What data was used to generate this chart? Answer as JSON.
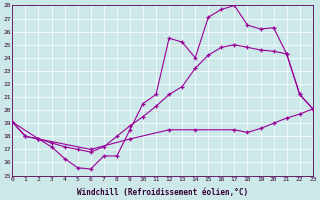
{
  "xlabel": "Windchill (Refroidissement éolien,°C)",
  "bg_color": "#cce8e8",
  "line_color": "#990099",
  "grid_color": "#ffffff",
  "xmin": 0,
  "xmax": 23,
  "ymin": 15,
  "ymax": 28,
  "xtick_labels": [
    "0",
    "1",
    "2",
    "3",
    "4",
    "5",
    "6",
    "7",
    "8",
    "9",
    "10",
    "11",
    "12",
    "13",
    "14",
    "15",
    "16",
    "17",
    "18",
    "19",
    "20",
    "21",
    "22",
    "23"
  ],
  "ytick_labels": [
    "15",
    "16",
    "17",
    "18",
    "19",
    "20",
    "21",
    "22",
    "23",
    "24",
    "25",
    "26",
    "27",
    "28"
  ],
  "series1": [
    [
      0,
      19.1
    ],
    [
      1,
      18.0
    ],
    [
      2,
      17.8
    ],
    [
      3,
      17.2
    ],
    [
      4,
      16.3
    ],
    [
      5,
      15.6
    ],
    [
      6,
      15.5
    ],
    [
      7,
      16.5
    ],
    [
      8,
      16.5
    ],
    [
      9,
      18.5
    ],
    [
      10,
      20.5
    ],
    [
      11,
      21.2
    ],
    [
      12,
      25.5
    ],
    [
      13,
      25.2
    ],
    [
      14,
      24.0
    ],
    [
      15,
      27.1
    ],
    [
      16,
      27.7
    ],
    [
      17,
      28.0
    ],
    [
      18,
      26.5
    ],
    [
      19,
      26.2
    ],
    [
      20,
      26.3
    ],
    [
      21,
      24.3
    ],
    [
      22,
      21.2
    ],
    [
      23,
      20.1
    ]
  ],
  "series2": [
    [
      0,
      19.1
    ],
    [
      1,
      18.0
    ],
    [
      2,
      17.8
    ],
    [
      3,
      17.5
    ],
    [
      4,
      17.2
    ],
    [
      5,
      17.0
    ],
    [
      6,
      16.8
    ],
    [
      7,
      17.2
    ],
    [
      8,
      18.0
    ],
    [
      9,
      18.8
    ],
    [
      10,
      19.5
    ],
    [
      11,
      20.3
    ],
    [
      12,
      21.2
    ],
    [
      13,
      21.8
    ],
    [
      14,
      23.2
    ],
    [
      15,
      24.2
    ],
    [
      16,
      24.8
    ],
    [
      17,
      25.0
    ],
    [
      18,
      24.8
    ],
    [
      19,
      24.6
    ],
    [
      20,
      24.5
    ],
    [
      21,
      24.3
    ],
    [
      22,
      21.2
    ],
    [
      23,
      20.1
    ]
  ],
  "series3": [
    [
      0,
      19.1
    ],
    [
      2,
      17.8
    ],
    [
      6,
      17.0
    ],
    [
      9,
      17.8
    ],
    [
      12,
      18.5
    ],
    [
      14,
      18.5
    ],
    [
      17,
      18.5
    ],
    [
      18,
      18.3
    ],
    [
      19,
      18.6
    ],
    [
      20,
      19.0
    ],
    [
      21,
      19.4
    ],
    [
      22,
      19.7
    ],
    [
      23,
      20.1
    ]
  ]
}
